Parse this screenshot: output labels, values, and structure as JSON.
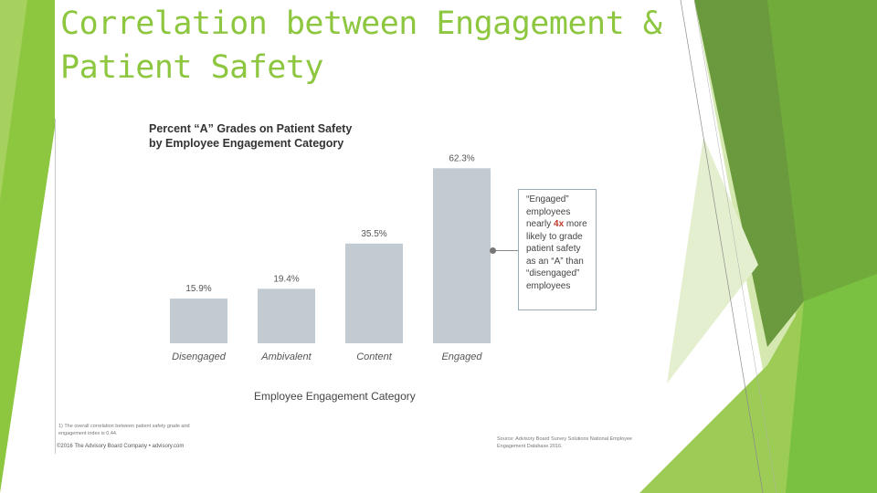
{
  "slide": {
    "title_line1": "Correlation between Engagement &",
    "title_line2": "Patient Safety",
    "accent_color": "#8dc63f"
  },
  "figure": {
    "title_line1": "Percent “A” Grades on Patient Safety",
    "title_line2": "by Employee Engagement Category",
    "xlabel": "Employee Engagement Category",
    "callout": {
      "line1": "“Engaged” employees nearly ",
      "highlight": "4x",
      "line2": " more likely to grade patient safety as an “A” than “disengaged” employees"
    },
    "footnote": "1) The overall correlation between patient safety grade and engagement index is 0.44.",
    "source": "Source: Advisory Board Survey Solutions National Employee Engagement Database 2016.",
    "copyright": "©2016 The Advisory Board Company • advisory.com"
  },
  "chart_data": {
    "type": "bar",
    "title": "Percent “A” Grades on Patient Safety by Employee Engagement Category",
    "xlabel": "Employee Engagement Category",
    "ylabel": "",
    "categories": [
      "Disengaged",
      "Ambivalent",
      "Content",
      "Engaged"
    ],
    "values": [
      15.9,
      19.4,
      35.5,
      62.3
    ],
    "value_labels": [
      "15.9%",
      "19.4%",
      "35.5%",
      "62.3%"
    ],
    "ylim": [
      0,
      65
    ],
    "bar_color": "#c2cbd2",
    "grid": false
  }
}
